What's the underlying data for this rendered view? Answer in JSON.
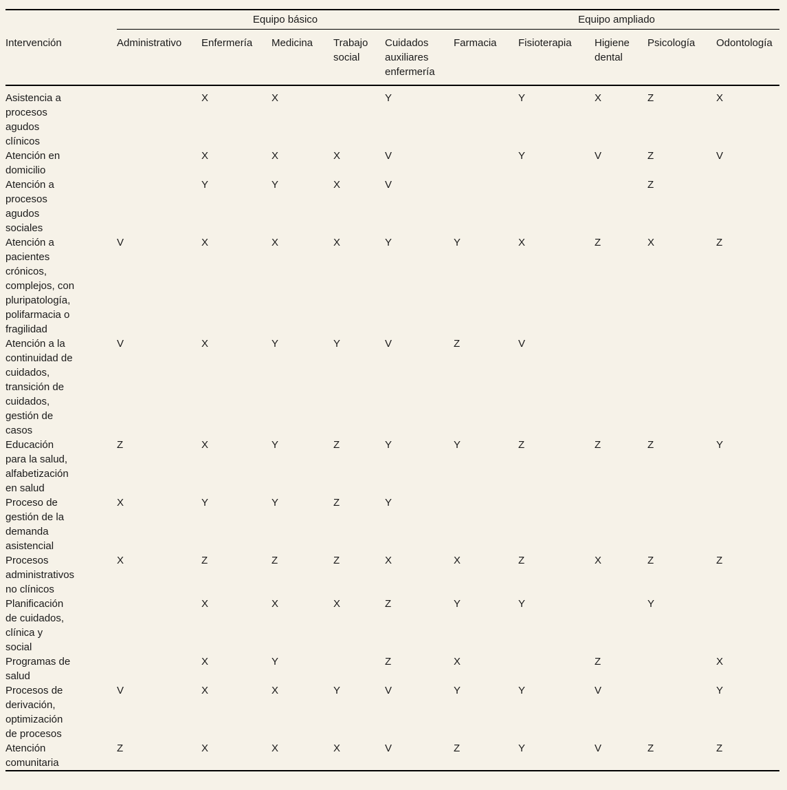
{
  "colors": {
    "page_background": "#f6f2e8",
    "text": "#1a1a1a",
    "rule": "#000000"
  },
  "table": {
    "row_header_label": "Intervención",
    "groups": [
      {
        "label": "Equipo básico"
      },
      {
        "label": "Equipo ampliado"
      }
    ],
    "columns": [
      "Administrativo",
      "Enfermería",
      "Medicina",
      "Trabajo\nsocial",
      "Cuidados\nauxiliares\nenfermería",
      "Farmacia",
      "Fisioterapia",
      "Higiene\ndental",
      "Psicología",
      "Odontología"
    ],
    "rows": [
      {
        "label": "Asistencia a\nprocesos\nagudos\nclínicos",
        "values": [
          "",
          "X",
          "X",
          "",
          "Y",
          "",
          "Y",
          "X",
          "Z",
          "X"
        ]
      },
      {
        "label": "Atención en\ndomicilio",
        "values": [
          "",
          "X",
          "X",
          "X",
          "V",
          "",
          "Y",
          "V",
          "Z",
          "V"
        ]
      },
      {
        "label": "Atención a\nprocesos\nagudos\nsociales",
        "values": [
          "",
          "Y",
          "Y",
          "X",
          "V",
          "",
          "",
          "",
          "Z",
          ""
        ]
      },
      {
        "label": "Atención a\npacientes\ncrónicos,\ncomplejos, con\npluripatología,\npolifarmacia o\nfragilidad",
        "values": [
          "V",
          "X",
          "X",
          "X",
          "Y",
          "Y",
          "X",
          "Z",
          "X",
          "Z"
        ]
      },
      {
        "label": "Atención a la\ncontinuidad de\ncuidados,\ntransición de\ncuidados,\ngestión de\ncasos",
        "values": [
          "V",
          "X",
          "Y",
          "Y",
          "V",
          "Z",
          "V",
          "",
          "",
          ""
        ]
      },
      {
        "label": "Educación\npara la salud,\nalfabetización\nen salud",
        "values": [
          "Z",
          "X",
          "Y",
          "Z",
          "Y",
          "Y",
          "Z",
          "Z",
          "Z",
          "Y"
        ]
      },
      {
        "label": "Proceso de\ngestión de la\ndemanda\nasistencial",
        "values": [
          "X",
          "Y",
          "Y",
          "Z",
          "Y",
          "",
          "",
          "",
          "",
          ""
        ]
      },
      {
        "label": "Procesos\nadministrativos\nno clínicos",
        "values": [
          "X",
          "Z",
          "Z",
          "Z",
          "X",
          "X",
          "Z",
          "X",
          "Z",
          "Z"
        ]
      },
      {
        "label": "Planificación\nde cuidados,\nclínica y\nsocial",
        "values": [
          "",
          "X",
          "X",
          "X",
          "Z",
          "Y",
          "Y",
          "",
          "Y",
          ""
        ]
      },
      {
        "label": "Programas de\nsalud",
        "values": [
          "",
          "X",
          "Y",
          "",
          "Z",
          "X",
          "",
          "Z",
          "",
          "X"
        ]
      },
      {
        "label": "Procesos de\nderivación,\noptimización\nde procesos",
        "values": [
          "V",
          "X",
          "X",
          "Y",
          "V",
          "Y",
          "Y",
          "V",
          "",
          "Y"
        ]
      },
      {
        "label": "Atención\ncomunitaria",
        "values": [
          "Z",
          "X",
          "X",
          "X",
          "V",
          "Z",
          "Y",
          "V",
          "Z",
          "Z"
        ]
      }
    ]
  }
}
